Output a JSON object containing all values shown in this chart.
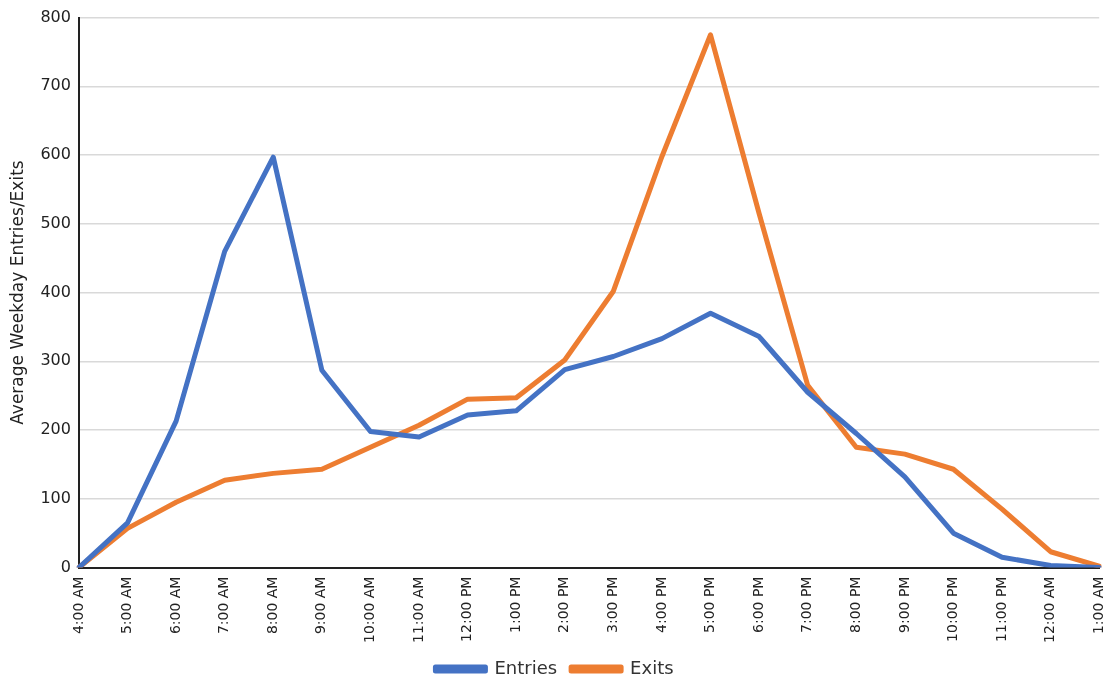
{
  "chart_data": {
    "type": "line",
    "ylabel": "Average Weekday Entries/Exits",
    "categories": [
      "4:00 AM",
      "5:00 AM",
      "6:00 AM",
      "7:00 AM",
      "8:00 AM",
      "9:00 AM",
      "10:00 AM",
      "11:00 AM",
      "12:00 PM",
      "1:00 PM",
      "2:00 PM",
      "3:00 PM",
      "4:00 PM",
      "5:00 PM",
      "6:00 PM",
      "7:00 PM",
      "8:00 PM",
      "9:00 PM",
      "10:00 PM",
      "11:00 PM",
      "12:00 AM",
      "1:00 AM"
    ],
    "series": [
      {
        "name": "Entries",
        "color": "#4472c4",
        "values": [
          0,
          65,
          213,
          460,
          597,
          287,
          198,
          190,
          222,
          228,
          288,
          307,
          333,
          370,
          336,
          255,
          195,
          132,
          50,
          15,
          3,
          0
        ]
      },
      {
        "name": "Exits",
        "color": "#ed7d31",
        "values": [
          0,
          57,
          95,
          127,
          137,
          143,
          175,
          207,
          245,
          247,
          302,
          402,
          598,
          775,
          515,
          265,
          175,
          165,
          143,
          85,
          23,
          2
        ]
      }
    ],
    "ylim": [
      0,
      800
    ],
    "yticks": [
      0,
      100,
      200,
      300,
      400,
      500,
      600,
      700,
      800
    ],
    "grid": "y",
    "legend": "bottom",
    "marker": "none",
    "line_style": "solid"
  }
}
